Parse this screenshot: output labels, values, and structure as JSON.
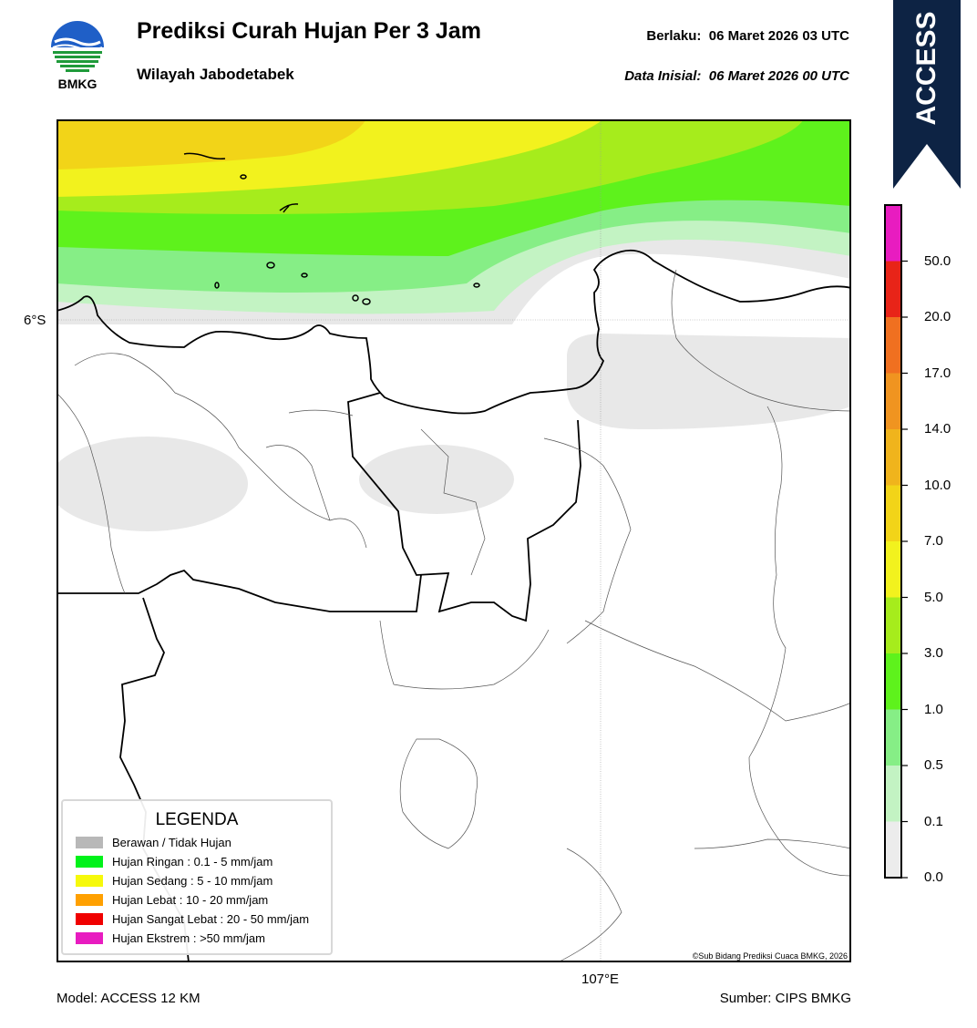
{
  "header": {
    "logo_text": "BMKG",
    "title": "Prediksi Curah Hujan Per 3 Jam",
    "subtitle": "Wilayah Jabodetabek",
    "valid_label": "Berlaku:",
    "valid_value": "06 Maret 2026 03 UTC",
    "init_label": "Data Inisial:",
    "init_value": "06 Maret 2026 00 UTC"
  },
  "badge": {
    "text": "ACCESS",
    "color": "#0d2344"
  },
  "map": {
    "lat_label": "6°S",
    "lon_label": "107°E",
    "copyright": "©Sub Bidang Prediksi Cuaca BMKG, 2026"
  },
  "legend": {
    "title": "LEGENDA",
    "items": [
      {
        "label": "Berawan / Tidak Hujan",
        "color": "#b8b8b8"
      },
      {
        "label": "Hujan Ringan : 0.1 - 5 mm/jam",
        "color": "#00f21a"
      },
      {
        "label": "Hujan Sedang : 5 - 10 mm/jam",
        "color": "#f6f90b"
      },
      {
        "label": "Hujan Lebat : 10 - 20 mm/jam",
        "color": "#ffa000"
      },
      {
        "label": "Hujan Sangat Lebat : 20 - 50 mm/jam",
        "color": "#f00000"
      },
      {
        "label": "Hujan Ekstrem : >50 mm/jam",
        "color": "#e81cc0"
      }
    ]
  },
  "colorbar": {
    "ticks": [
      "0.0",
      "0.1",
      "0.5",
      "1.0",
      "3.0",
      "5.0",
      "7.0",
      "10.0",
      "14.0",
      "17.0",
      "20.0",
      "50.0"
    ],
    "colors": [
      "#ececec",
      "#c3f3c3",
      "#86ee86",
      "#5ef21c",
      "#a6ec1c",
      "#f2f21e",
      "#f2d418",
      "#f0b41c",
      "#f09420",
      "#f07020",
      "#e82418",
      "#e81cc0"
    ]
  },
  "footer": {
    "model": "Model: ACCESS 12 KM",
    "source": "Sumber: CIPS BMKG"
  }
}
